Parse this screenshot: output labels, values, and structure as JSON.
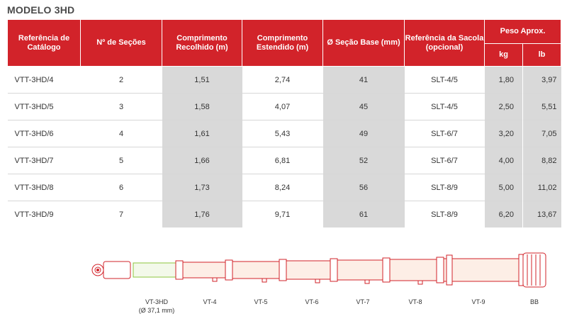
{
  "title": "MODELO 3HD",
  "table": {
    "headers": {
      "ref": "Referência de Catálogo",
      "sections": "Nº de Seções",
      "retracted": "Comprimento Recolhido (m)",
      "extended": "Comprimento Estendido (m)",
      "base": "Ø Seção Base (mm)",
      "bag": "Referência da Sacola (opcional)",
      "weight": "Peso Aprox.",
      "kg": "kg",
      "lb": "lb"
    },
    "rows": [
      {
        "ref": "VTT-3HD/4",
        "sections": "2",
        "retracted": "1,51",
        "extended": "2,74",
        "base": "41",
        "bag": "SLT-4/5",
        "kg": "1,80",
        "lb": "3,97"
      },
      {
        "ref": "VTT-3HD/5",
        "sections": "3",
        "retracted": "1,58",
        "extended": "4,07",
        "base": "45",
        "bag": "SLT-4/5",
        "kg": "2,50",
        "lb": "5,51"
      },
      {
        "ref": "VTT-3HD/6",
        "sections": "4",
        "retracted": "1,61",
        "extended": "5,43",
        "base": "49",
        "bag": "SLT-6/7",
        "kg": "3,20",
        "lb": "7,05"
      },
      {
        "ref": "VTT-3HD/7",
        "sections": "5",
        "retracted": "1,66",
        "extended": "6,81",
        "base": "52",
        "bag": "SLT-6/7",
        "kg": "4,00",
        "lb": "8,82"
      },
      {
        "ref": "VTT-3HD/8",
        "sections": "6",
        "retracted": "1,73",
        "extended": "8,24",
        "base": "56",
        "bag": "SLT-8/9",
        "kg": "5,00",
        "lb": "11,02"
      },
      {
        "ref": "VTT-3HD/9",
        "sections": "7",
        "retracted": "1,76",
        "extended": "9,71",
        "base": "61",
        "bag": "SLT-8/9",
        "kg": "6,20",
        "lb": "13,67"
      }
    ]
  },
  "diagram": {
    "labels": {
      "vt3hd": "VT-3HD",
      "vt3hd_dia": "(Ø 37,1 mm)",
      "vt4": "VT-4",
      "vt5": "VT-5",
      "vt6": "VT-6",
      "vt7": "VT-7",
      "vt8": "VT-8",
      "vt9": "VT-9",
      "bb": "BB"
    },
    "colors": {
      "outline": "#d2232a",
      "head_section": "#8dc63f",
      "fill": "#fdeee6"
    }
  }
}
